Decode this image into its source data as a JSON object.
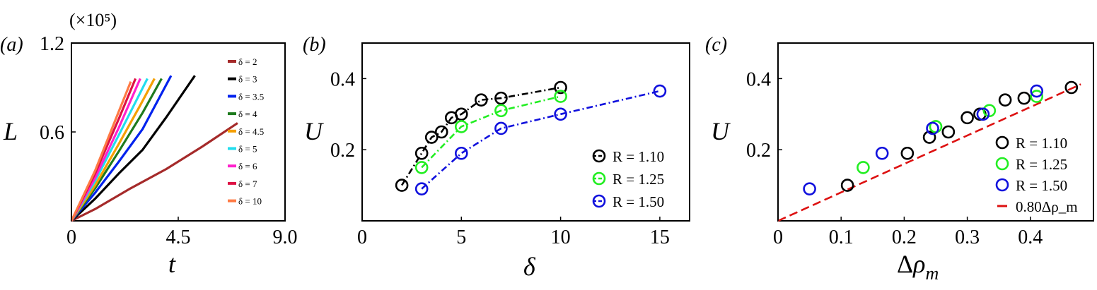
{
  "panels": {
    "a": {
      "label": "(a)",
      "scale_note": "(×10⁵)"
    },
    "b": {
      "label": "(b)"
    },
    "c": {
      "label": "(c)"
    }
  },
  "chart_data": [
    {
      "type": "line",
      "panel": "(a)",
      "xlabel": "t",
      "ylabel": "L",
      "y_scale_note": "(×10⁵)",
      "xlim": [
        0,
        9
      ],
      "ylim": [
        0,
        1.2
      ],
      "xticks": [
        "0",
        "4.5",
        "9.0"
      ],
      "yticks": [
        "0.6",
        "1.2"
      ],
      "legend_position": "top-right",
      "series": [
        {
          "name": "δ = 2",
          "color": "#a52a2a",
          "x": [
            0,
            1.0,
            2.5,
            4.0,
            5.5,
            7.0
          ],
          "y": [
            0,
            0.08,
            0.22,
            0.35,
            0.5,
            0.66
          ]
        },
        {
          "name": "δ = 3",
          "color": "#000000",
          "x": [
            0,
            1.0,
            2.0,
            3.0,
            4.0,
            5.2
          ],
          "y": [
            0,
            0.15,
            0.32,
            0.48,
            0.7,
            0.98
          ]
        },
        {
          "name": "δ = 3.5",
          "color": "#0022ee",
          "x": [
            0,
            1.0,
            2.0,
            3.0,
            4.2
          ],
          "y": [
            0,
            0.19,
            0.4,
            0.62,
            0.98
          ]
        },
        {
          "name": "δ = 4",
          "color": "#1e7a1e",
          "x": [
            0,
            1.0,
            2.0,
            3.0,
            3.8
          ],
          "y": [
            0,
            0.22,
            0.47,
            0.73,
            0.96
          ]
        },
        {
          "name": "δ = 4.5",
          "color": "#f5a000",
          "x": [
            0,
            1.0,
            2.0,
            2.9,
            3.5
          ],
          "y": [
            0,
            0.24,
            0.52,
            0.78,
            0.96
          ]
        },
        {
          "name": "δ = 5",
          "color": "#22ddee",
          "x": [
            0,
            1.0,
            2.0,
            3.2
          ],
          "y": [
            0,
            0.27,
            0.58,
            0.96
          ]
        },
        {
          "name": "δ = 6",
          "color": "#ff22cc",
          "x": [
            0,
            1.0,
            2.0,
            2.9
          ],
          "y": [
            0,
            0.29,
            0.63,
            0.96
          ]
        },
        {
          "name": "δ = 7",
          "color": "#dd1144",
          "x": [
            0,
            1.0,
            2.0,
            2.7
          ],
          "y": [
            0,
            0.32,
            0.69,
            0.96
          ]
        },
        {
          "name": "δ = 10",
          "color": "#ff7a44",
          "x": [
            0,
            1.0,
            2.0,
            2.5
          ],
          "y": [
            0,
            0.34,
            0.74,
            0.94
          ]
        }
      ]
    },
    {
      "type": "line",
      "panel": "(b)",
      "xlabel": "δ",
      "ylabel": "U",
      "xlim": [
        0,
        16.5
      ],
      "ylim": [
        0,
        0.5
      ],
      "xticks": [
        "0",
        "5",
        "10",
        "15"
      ],
      "yticks": [
        "0.2",
        "0.4"
      ],
      "legend_position": "bottom-right",
      "series": [
        {
          "name": "R = 1.10",
          "color": "#000000",
          "x": [
            2,
            3,
            3.5,
            4,
            4.5,
            5,
            6,
            7,
            10
          ],
          "y": [
            0.1,
            0.19,
            0.235,
            0.25,
            0.29,
            0.3,
            0.34,
            0.345,
            0.375
          ]
        },
        {
          "name": "R = 1.25",
          "color": "#22ee22",
          "x": [
            3,
            5,
            7,
            10
          ],
          "y": [
            0.15,
            0.265,
            0.31,
            0.35
          ]
        },
        {
          "name": "R = 1.50",
          "color": "#1111dd",
          "x": [
            3,
            5,
            7,
            10,
            15
          ],
          "y": [
            0.09,
            0.19,
            0.26,
            0.3,
            0.365
          ]
        }
      ]
    },
    {
      "type": "scatter",
      "panel": "(c)",
      "xlabel": "Δρ_m",
      "ylabel": "U",
      "xlim": [
        0,
        0.5
      ],
      "ylim": [
        0,
        0.5
      ],
      "xticks": [
        "0",
        "0.1",
        "0.2",
        "0.3",
        "0.4"
      ],
      "yticks": [
        "0.2",
        "0.4"
      ],
      "legend_position": "bottom-right",
      "series": [
        {
          "name": "R = 1.10",
          "color": "#000000",
          "x": [
            0.11,
            0.205,
            0.24,
            0.27,
            0.3,
            0.32,
            0.36,
            0.39,
            0.465
          ],
          "y": [
            0.1,
            0.19,
            0.235,
            0.25,
            0.29,
            0.3,
            0.34,
            0.345,
            0.375
          ]
        },
        {
          "name": "R = 1.25",
          "color": "#22ee22",
          "x": [
            0.135,
            0.25,
            0.335,
            0.41
          ],
          "y": [
            0.15,
            0.265,
            0.31,
            0.35
          ]
        },
        {
          "name": "R = 1.50",
          "color": "#1111dd",
          "x": [
            0.05,
            0.165,
            0.245,
            0.325,
            0.41
          ],
          "y": [
            0.09,
            0.19,
            0.26,
            0.3,
            0.365
          ]
        },
        {
          "name": "0.80Δρ_m",
          "color": "#dd1111",
          "kind": "fit-line",
          "slope": 0.8,
          "x": [
            0,
            0.48
          ],
          "y": [
            0,
            0.384
          ]
        }
      ]
    }
  ]
}
